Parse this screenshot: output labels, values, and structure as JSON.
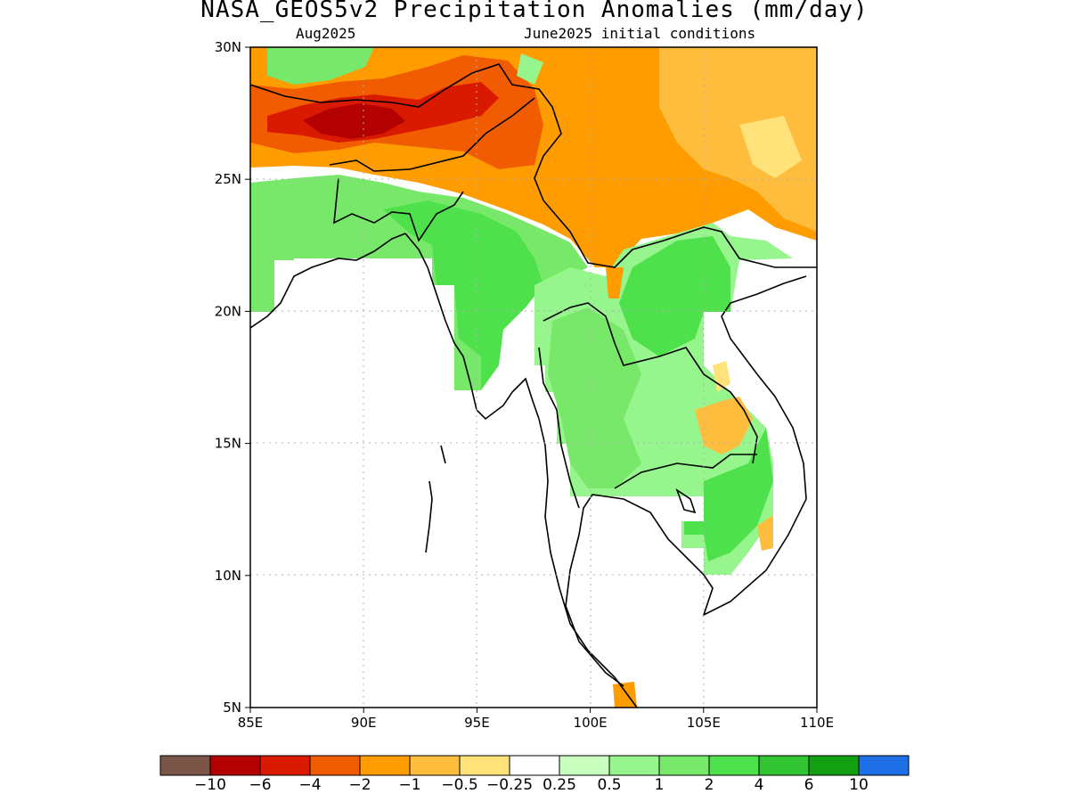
{
  "title": "NASA_GEOS5v2 Precipitation Anomalies (mm/day)",
  "subtitle_left": "Aug2025",
  "subtitle_right": "June2025 initial conditions",
  "axes": {
    "lon_ticks": [
      "85E",
      "90E",
      "95E",
      "100E",
      "105E",
      "110E"
    ],
    "lat_ticks": [
      "5N",
      "10N",
      "15N",
      "20N",
      "25N",
      "30N"
    ],
    "lon_range": [
      85,
      110
    ],
    "lat_range": [
      5,
      30
    ],
    "grid": "dotted"
  },
  "colorbar": {
    "colors": [
      "#7a5548",
      "#b30000",
      "#d91a00",
      "#f25c00",
      "#ff9c00",
      "#ffbd3d",
      "#ffe37a",
      "#ffffff",
      "#c9ffbf",
      "#96f58c",
      "#78e86b",
      "#4ee14c",
      "#33c433",
      "#12a012",
      "#1e6ee6"
    ],
    "labels": [
      "-10",
      "-6",
      "-4",
      "-2",
      "-1",
      "-0.5",
      "-0.25",
      "0.25",
      "0.5",
      "1",
      "2",
      "4",
      "6",
      "10"
    ]
  },
  "regions": [
    {
      "name": "north-negative-band",
      "value": -1.5,
      "color": "#ff9c00"
    },
    {
      "name": "himalaya-strong-negative",
      "value": -8,
      "color": "#b30000"
    },
    {
      "name": "south-china-negative",
      "value": -1,
      "color": "#ffbd3d"
    },
    {
      "name": "bay-of-bengal-coast-positive",
      "value": 2,
      "color": "#78e86b"
    },
    {
      "name": "myanmar-positive",
      "value": 3,
      "color": "#4ee14c"
    },
    {
      "name": "thailand-laos-positive",
      "value": 1.5,
      "color": "#96f58c"
    },
    {
      "name": "cambodia-vietnam-positive",
      "value": 2,
      "color": "#78e86b"
    }
  ]
}
